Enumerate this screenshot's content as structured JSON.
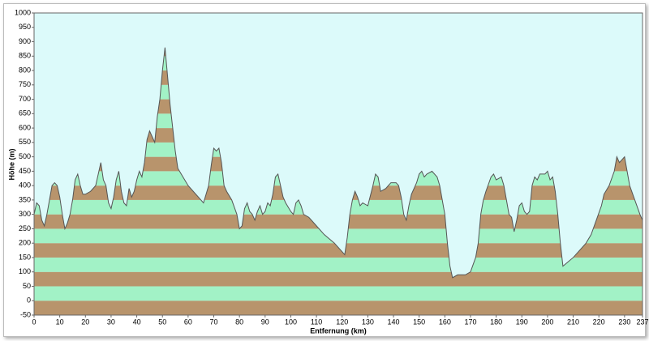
{
  "chart_data": {
    "type": "area",
    "xlabel": "Entfernung  (km)",
    "ylabel": "Höhe (m)",
    "x": [
      0,
      1,
      2,
      3,
      4,
      5,
      6,
      7,
      8,
      9,
      10,
      11,
      12,
      13,
      14,
      15,
      16,
      17,
      18,
      19,
      20,
      22,
      24,
      25,
      26,
      27,
      28,
      29,
      30,
      31,
      32,
      33,
      34,
      35,
      36,
      37,
      38,
      39,
      40,
      41,
      42,
      43,
      44,
      45,
      46,
      47,
      48,
      49,
      50,
      51,
      52,
      53,
      54,
      55,
      56,
      58,
      60,
      62,
      64,
      65,
      66,
      68,
      69,
      70,
      71,
      72,
      73,
      74,
      75,
      77,
      79,
      80,
      81,
      82,
      83,
      84,
      85,
      86,
      87,
      88,
      89,
      90,
      91,
      92,
      93,
      94,
      95,
      96,
      97,
      98,
      100,
      101,
      102,
      103,
      104,
      105,
      107,
      110,
      113,
      117,
      120,
      121,
      122,
      123,
      124,
      125,
      126,
      127,
      128,
      130,
      132,
      133,
      134,
      135,
      137,
      138,
      139,
      141,
      142,
      143,
      144,
      145,
      146,
      147,
      149,
      150,
      151,
      152,
      153,
      155,
      157,
      158,
      160,
      161,
      162,
      163,
      165,
      168,
      170,
      172,
      173,
      174,
      175,
      176,
      178,
      179,
      180,
      182,
      183,
      184,
      185,
      186,
      187,
      188,
      189,
      190,
      191,
      192,
      193,
      194,
      195,
      196,
      197,
      199,
      200,
      201,
      202,
      203,
      204,
      205,
      206,
      210,
      213,
      215,
      217,
      219,
      221,
      222,
      224,
      226,
      227,
      228,
      229,
      230,
      231,
      232,
      234,
      236,
      237
    ],
    "values": [
      300,
      340,
      330,
      280,
      260,
      300,
      350,
      400,
      410,
      400,
      360,
      300,
      250,
      270,
      300,
      350,
      420,
      440,
      400,
      370,
      370,
      380,
      400,
      440,
      480,
      420,
      400,
      340,
      320,
      360,
      420,
      450,
      380,
      340,
      330,
      390,
      360,
      380,
      420,
      450,
      430,
      480,
      560,
      590,
      570,
      550,
      640,
      700,
      800,
      880,
      780,
      680,
      600,
      520,
      460,
      430,
      400,
      380,
      360,
      350,
      340,
      400,
      470,
      530,
      520,
      530,
      480,
      400,
      380,
      350,
      300,
      250,
      260,
      320,
      340,
      310,
      300,
      280,
      310,
      330,
      300,
      310,
      340,
      330,
      370,
      430,
      440,
      400,
      360,
      340,
      310,
      300,
      340,
      350,
      330,
      300,
      290,
      260,
      230,
      200,
      170,
      160,
      220,
      300,
      350,
      380,
      360,
      330,
      340,
      330,
      400,
      440,
      430,
      380,
      390,
      400,
      410,
      410,
      400,
      360,
      300,
      280,
      330,
      370,
      410,
      440,
      450,
      430,
      440,
      450,
      430,
      400,
      300,
      200,
      120,
      80,
      90,
      90,
      100,
      150,
      200,
      300,
      350,
      380,
      430,
      440,
      420,
      430,
      400,
      350,
      300,
      290,
      240,
      280,
      330,
      340,
      310,
      300,
      310,
      400,
      430,
      420,
      440,
      440,
      450,
      420,
      430,
      380,
      300,
      200,
      120,
      150,
      180,
      200,
      230,
      280,
      330,
      370,
      400,
      450,
      500,
      480,
      490,
      500,
      450,
      400,
      350,
      300,
      280
    ],
    "xlim": [
      0,
      237
    ],
    "xticks": [
      0,
      10,
      20,
      30,
      40,
      50,
      60,
      70,
      80,
      90,
      100,
      110,
      120,
      130,
      140,
      150,
      160,
      170,
      180,
      190,
      200,
      210,
      220,
      230,
      237
    ],
    "ylim": [
      -50,
      1000
    ],
    "yticks": [
      -50,
      0,
      50,
      100,
      150,
      200,
      250,
      300,
      350,
      400,
      450,
      500,
      550,
      600,
      650,
      700,
      750,
      800,
      850,
      900,
      950,
      1000
    ],
    "background": "#dcfafa",
    "line_color": "#555555",
    "band_colors": [
      "#b8946c",
      "#a2f2c6"
    ]
  }
}
